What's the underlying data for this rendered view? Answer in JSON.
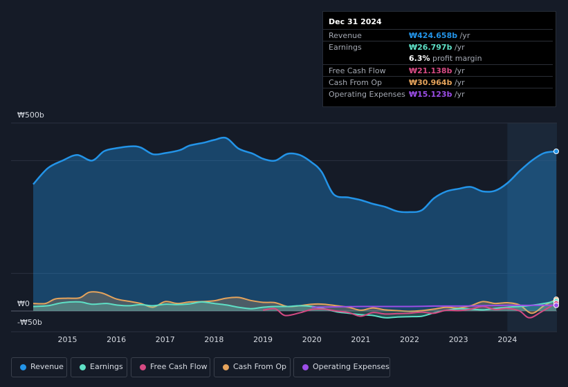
{
  "tooltip": {
    "date": "Dec 31 2024",
    "rows": [
      {
        "label": "Revenue",
        "value": "₩424.658b",
        "unit": " /yr"
      },
      {
        "label": "Earnings",
        "value": "₩26.797b",
        "unit": " /yr"
      },
      {
        "label": "",
        "value": "6.3%",
        "unit": " profit margin"
      },
      {
        "label": "Free Cash Flow",
        "value": "₩21.138b",
        "unit": " /yr"
      },
      {
        "label": "Cash From Op",
        "value": "₩30.964b",
        "unit": " /yr"
      },
      {
        "label": "Operating Expenses",
        "value": "₩15.123b",
        "unit": " /yr"
      }
    ]
  },
  "colors": {
    "revenue": "#2394e8",
    "earnings": "#5ee0c6",
    "free_cash_flow": "#d64a83",
    "cash_from_op": "#e6a45c",
    "operating_expenses": "#9c4ee8",
    "background": "#151b27"
  },
  "legend": [
    {
      "key": "revenue",
      "label": "Revenue"
    },
    {
      "key": "earnings",
      "label": "Earnings"
    },
    {
      "key": "free_cash_flow",
      "label": "Free Cash Flow"
    },
    {
      "key": "cash_from_op",
      "label": "Cash From Op"
    },
    {
      "key": "operating_expenses",
      "label": "Operating Expenses"
    }
  ],
  "chart_data": {
    "type": "area",
    "title": "",
    "xlabel": "",
    "ylabel": "",
    "currency": "KRW",
    "x_range": [
      2014.3,
      2025.0
    ],
    "ylim": [
      -50,
      500
    ],
    "y_tick_labels": [
      {
        "value": 500,
        "label": "₩500b"
      },
      {
        "value": 0,
        "label": "₩0"
      },
      {
        "value": -50,
        "label": "-₩50b"
      }
    ],
    "x_ticks": [
      2015,
      2016,
      2017,
      2018,
      2019,
      2020,
      2021,
      2022,
      2023,
      2024
    ],
    "x_tick_labels": [
      "2015",
      "2016",
      "2017",
      "2018",
      "2019",
      "2020",
      "2021",
      "2022",
      "2023",
      "2024"
    ],
    "highlight_start": 2024.0,
    "series": [
      {
        "key": "revenue",
        "name": "Revenue",
        "fill": true,
        "points": [
          [
            2014.3,
            337
          ],
          [
            2014.6,
            380
          ],
          [
            2014.9,
            400
          ],
          [
            2015.2,
            415
          ],
          [
            2015.5,
            400
          ],
          [
            2015.75,
            425
          ],
          [
            2016.0,
            433
          ],
          [
            2016.3,
            438
          ],
          [
            2016.5,
            435
          ],
          [
            2016.75,
            417
          ],
          [
            2017.0,
            420
          ],
          [
            2017.3,
            428
          ],
          [
            2017.5,
            440
          ],
          [
            2017.8,
            448
          ],
          [
            2018.0,
            455
          ],
          [
            2018.25,
            460
          ],
          [
            2018.5,
            432
          ],
          [
            2018.8,
            418
          ],
          [
            2019.0,
            405
          ],
          [
            2019.25,
            400
          ],
          [
            2019.5,
            418
          ],
          [
            2019.75,
            415
          ],
          [
            2020.0,
            395
          ],
          [
            2020.2,
            370
          ],
          [
            2020.45,
            310
          ],
          [
            2020.75,
            302
          ],
          [
            2021.0,
            295
          ],
          [
            2021.25,
            285
          ],
          [
            2021.5,
            277
          ],
          [
            2021.75,
            265
          ],
          [
            2022.0,
            263
          ],
          [
            2022.25,
            268
          ],
          [
            2022.5,
            300
          ],
          [
            2022.75,
            318
          ],
          [
            2023.0,
            325
          ],
          [
            2023.25,
            330
          ],
          [
            2023.5,
            318
          ],
          [
            2023.75,
            320
          ],
          [
            2024.0,
            340
          ],
          [
            2024.25,
            372
          ],
          [
            2024.5,
            400
          ],
          [
            2024.75,
            420
          ],
          [
            2025.0,
            424.658
          ]
        ]
      },
      {
        "key": "cash_from_op",
        "name": "Cash From Op",
        "fill": true,
        "points": [
          [
            2014.3,
            20
          ],
          [
            2014.55,
            20
          ],
          [
            2014.75,
            32
          ],
          [
            2015.0,
            34
          ],
          [
            2015.25,
            35
          ],
          [
            2015.45,
            50
          ],
          [
            2015.7,
            48
          ],
          [
            2016.0,
            32
          ],
          [
            2016.25,
            26
          ],
          [
            2016.5,
            20
          ],
          [
            2016.75,
            10
          ],
          [
            2017.0,
            25
          ],
          [
            2017.25,
            20
          ],
          [
            2017.5,
            24
          ],
          [
            2017.75,
            25
          ],
          [
            2018.0,
            27
          ],
          [
            2018.25,
            34
          ],
          [
            2018.5,
            36
          ],
          [
            2018.75,
            28
          ],
          [
            2019.0,
            23
          ],
          [
            2019.25,
            22
          ],
          [
            2019.5,
            12
          ],
          [
            2019.75,
            14
          ],
          [
            2020.0,
            18
          ],
          [
            2020.25,
            18
          ],
          [
            2020.5,
            14
          ],
          [
            2020.75,
            10
          ],
          [
            2021.0,
            2
          ],
          [
            2021.25,
            8
          ],
          [
            2021.5,
            3
          ],
          [
            2021.75,
            1
          ],
          [
            2022.0,
            -1
          ],
          [
            2022.25,
            1
          ],
          [
            2022.5,
            5
          ],
          [
            2022.75,
            10
          ],
          [
            2023.0,
            8
          ],
          [
            2023.25,
            14
          ],
          [
            2023.5,
            25
          ],
          [
            2023.75,
            20
          ],
          [
            2024.0,
            22
          ],
          [
            2024.25,
            16
          ],
          [
            2024.5,
            -6
          ],
          [
            2024.75,
            14
          ],
          [
            2025.0,
            30.964
          ]
        ]
      },
      {
        "key": "earnings",
        "name": "Earnings",
        "fill": true,
        "points": [
          [
            2014.3,
            12
          ],
          [
            2014.6,
            14
          ],
          [
            2014.9,
            22
          ],
          [
            2015.25,
            24
          ],
          [
            2015.5,
            18
          ],
          [
            2015.8,
            20
          ],
          [
            2016.0,
            16
          ],
          [
            2016.25,
            14
          ],
          [
            2016.5,
            17
          ],
          [
            2016.75,
            14
          ],
          [
            2017.0,
            18
          ],
          [
            2017.25,
            17
          ],
          [
            2017.5,
            19
          ],
          [
            2017.75,
            24
          ],
          [
            2018.0,
            20
          ],
          [
            2018.25,
            16
          ],
          [
            2018.5,
            10
          ],
          [
            2018.75,
            6
          ],
          [
            2019.0,
            10
          ],
          [
            2019.25,
            12
          ],
          [
            2019.5,
            12
          ],
          [
            2019.75,
            14
          ],
          [
            2020.0,
            12
          ],
          [
            2020.25,
            6
          ],
          [
            2020.5,
            -2
          ],
          [
            2020.75,
            -6
          ],
          [
            2021.0,
            -10
          ],
          [
            2021.25,
            -12
          ],
          [
            2021.5,
            -18
          ],
          [
            2021.75,
            -16
          ],
          [
            2022.0,
            -15
          ],
          [
            2022.25,
            -14
          ],
          [
            2022.5,
            -5
          ],
          [
            2022.75,
            2
          ],
          [
            2023.0,
            6
          ],
          [
            2023.25,
            5
          ],
          [
            2023.5,
            3
          ],
          [
            2023.75,
            7
          ],
          [
            2024.0,
            10
          ],
          [
            2024.25,
            12
          ],
          [
            2024.5,
            15
          ],
          [
            2024.75,
            20
          ],
          [
            2025.0,
            26.797
          ]
        ]
      },
      {
        "key": "free_cash_flow",
        "name": "Free Cash Flow",
        "fill": false,
        "points": [
          [
            2019.0,
            2
          ],
          [
            2019.25,
            6
          ],
          [
            2019.45,
            -12
          ],
          [
            2019.75,
            -5
          ],
          [
            2020.0,
            4
          ],
          [
            2020.25,
            5
          ],
          [
            2020.5,
            0
          ],
          [
            2020.75,
            -4
          ],
          [
            2021.0,
            -14
          ],
          [
            2021.25,
            -4
          ],
          [
            2021.5,
            -8
          ],
          [
            2021.75,
            -7
          ],
          [
            2022.0,
            -6
          ],
          [
            2022.25,
            -3
          ],
          [
            2022.5,
            -6
          ],
          [
            2022.75,
            2
          ],
          [
            2023.0,
            1
          ],
          [
            2023.25,
            5
          ],
          [
            2023.5,
            12
          ],
          [
            2023.75,
            4
          ],
          [
            2024.0,
            7
          ],
          [
            2024.25,
            0
          ],
          [
            2024.45,
            -18
          ],
          [
            2024.7,
            -2
          ],
          [
            2025.0,
            21.138
          ]
        ]
      },
      {
        "key": "operating_expenses",
        "name": "Operating Expenses",
        "fill": false,
        "points": [
          [
            2020.0,
            10
          ],
          [
            2020.5,
            11
          ],
          [
            2021.0,
            12
          ],
          [
            2021.5,
            12
          ],
          [
            2022.0,
            12
          ],
          [
            2022.5,
            13
          ],
          [
            2023.0,
            13
          ],
          [
            2023.5,
            14
          ],
          [
            2024.0,
            15
          ],
          [
            2024.5,
            15
          ],
          [
            2025.0,
            15.123
          ]
        ]
      }
    ]
  }
}
